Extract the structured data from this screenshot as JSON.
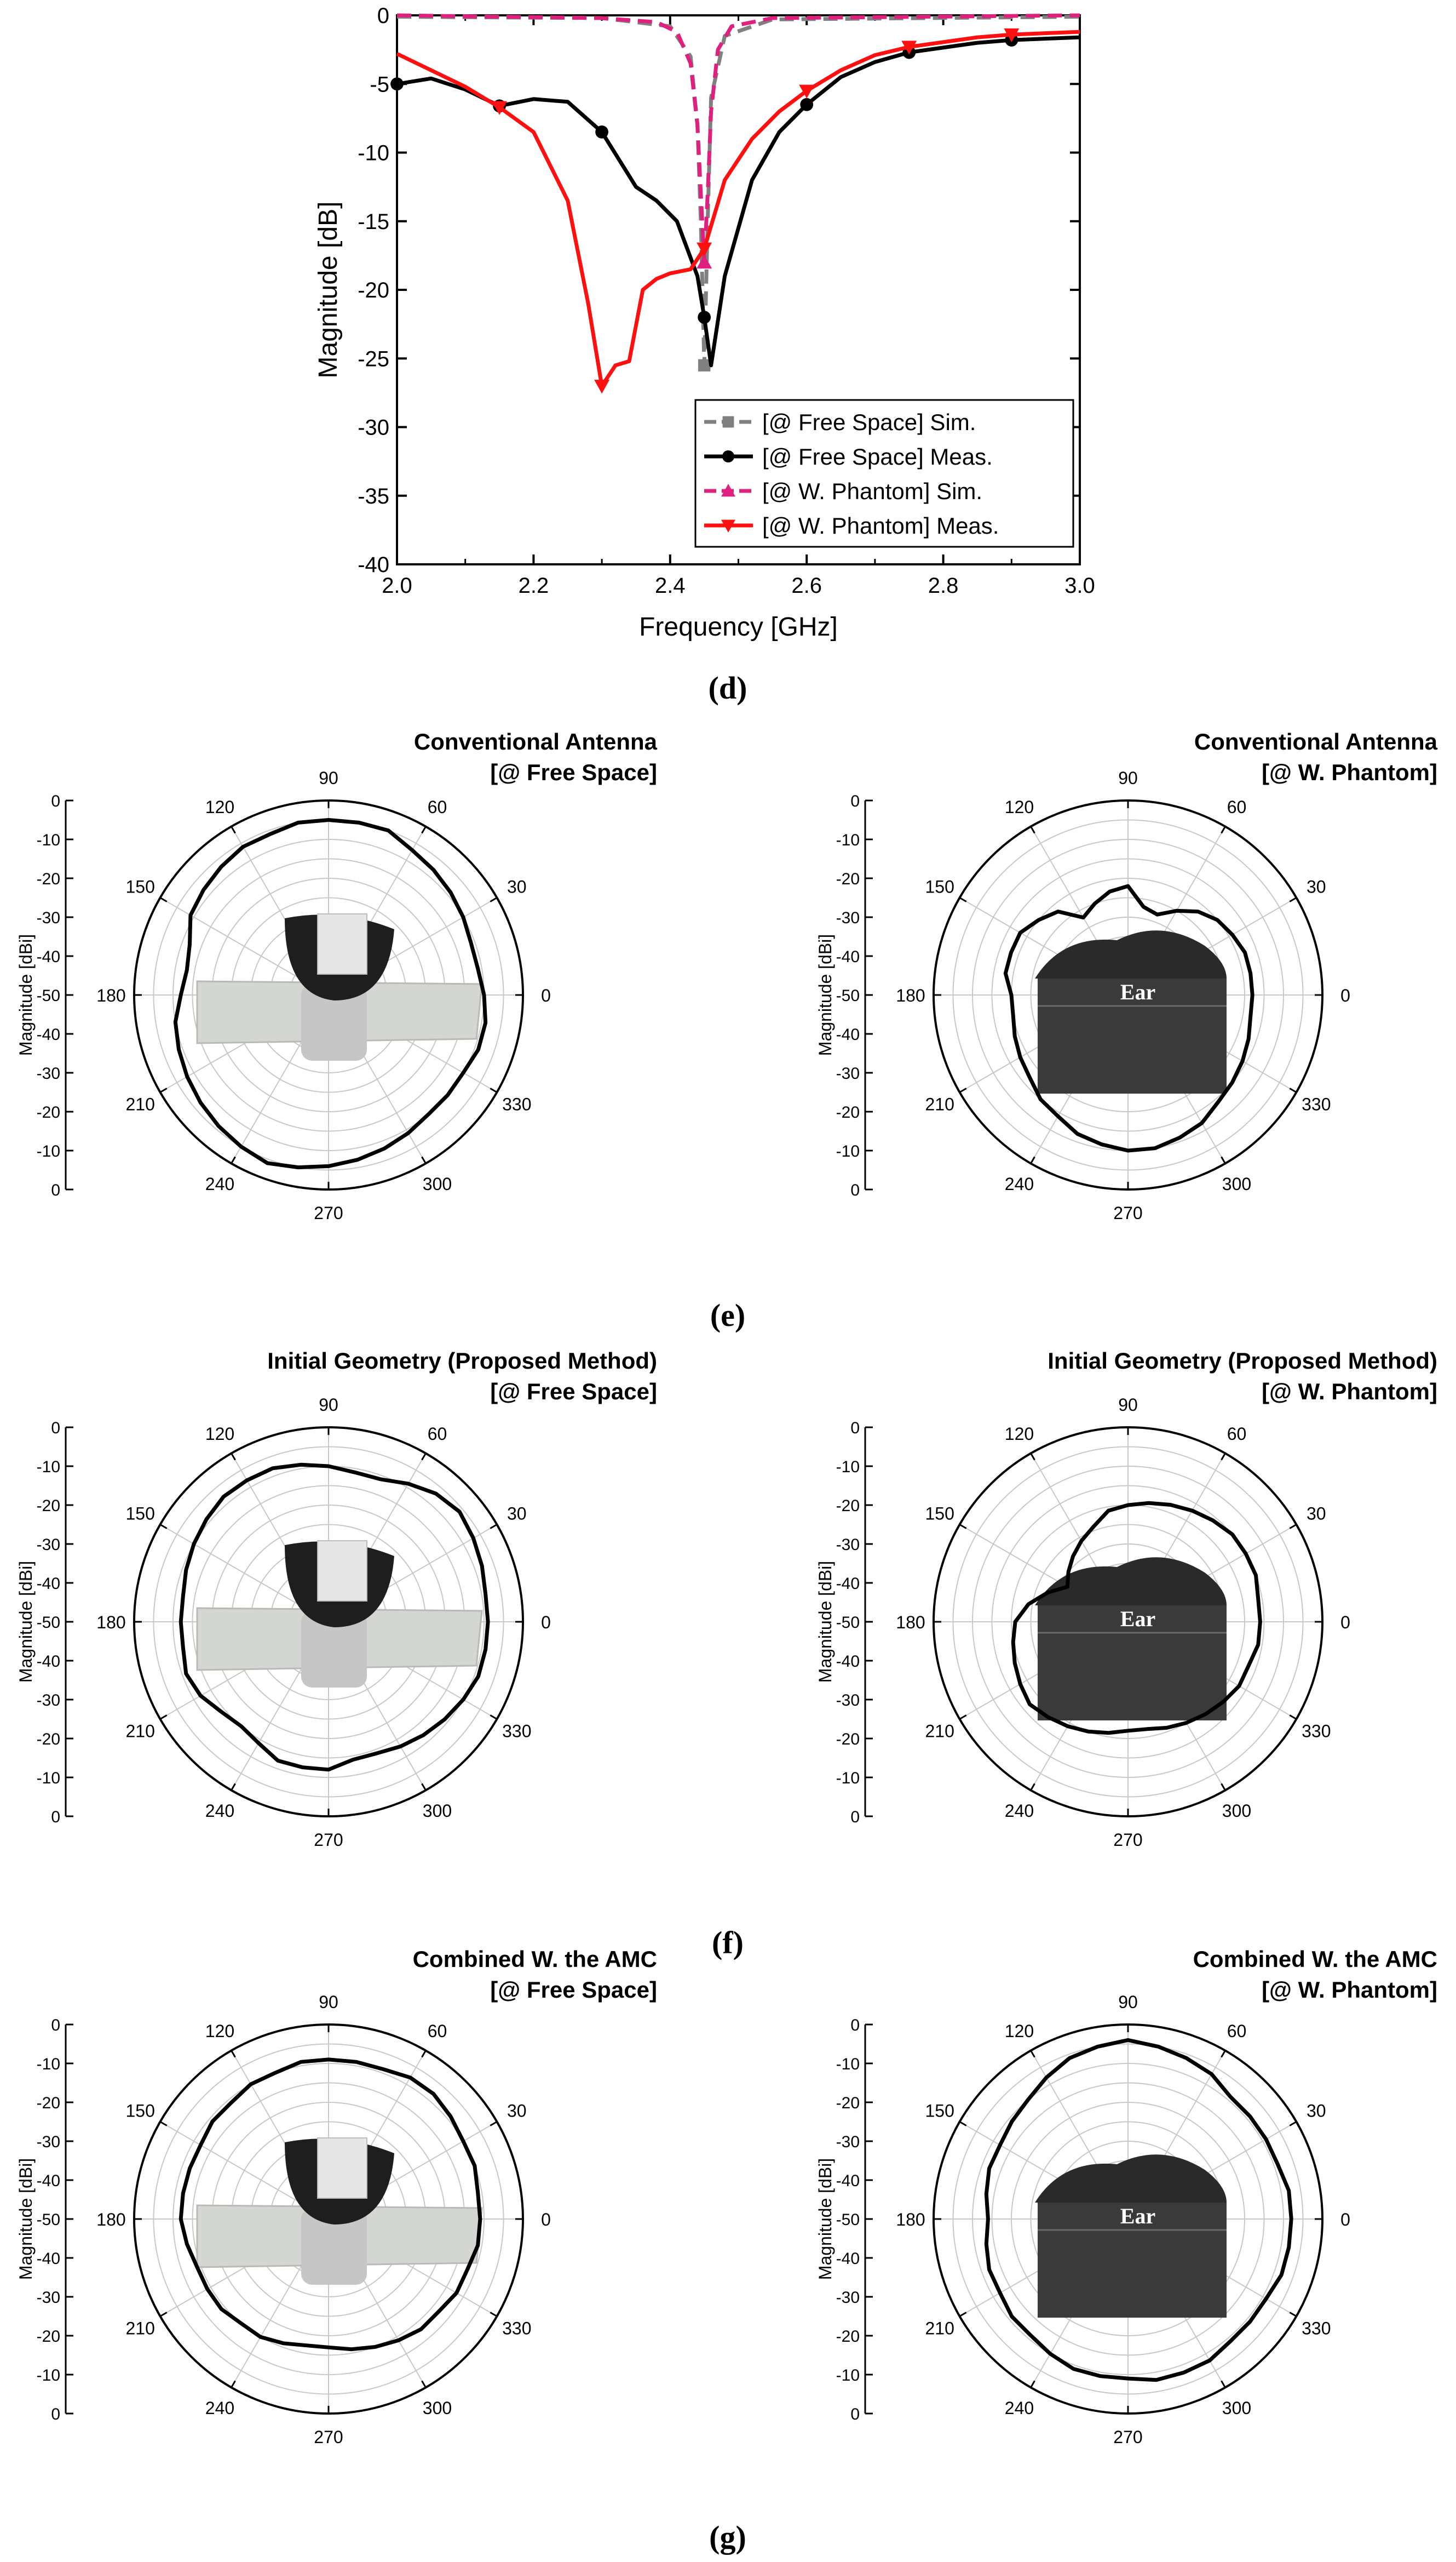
{
  "captions": [
    "(d)",
    "(e)",
    "(f)",
    "(g)"
  ],
  "colors": {
    "axis": "#000000",
    "grid": "#c8c8c8",
    "free_sim": "#808080",
    "free_meas": "#000000",
    "phantom_sim": "#e0207e",
    "phantom_meas": "#ff1010"
  },
  "chart_data": [
    {
      "id": "d",
      "type": "line",
      "xlabel": "Frequency [GHz]",
      "ylabel": "Magnitude [dB]",
      "xlim": [
        2.0,
        3.0
      ],
      "ylim": [
        -40,
        0
      ],
      "xticks": [
        2.0,
        2.2,
        2.4,
        2.6,
        2.8,
        3.0
      ],
      "yticks": [
        0,
        -5,
        -10,
        -15,
        -20,
        -25,
        -30,
        -35,
        -40
      ],
      "legend_position": "bottom-right",
      "series": [
        {
          "name": "[@ Free Space] Sim.",
          "color": "#808080",
          "dash": "dashed",
          "marker": "square",
          "markers_at": [
            2.45
          ],
          "points": [
            [
              2.0,
              -0.1
            ],
            [
              2.3,
              -0.2
            ],
            [
              2.4,
              -0.8
            ],
            [
              2.43,
              -3.0
            ],
            [
              2.44,
              -8.0
            ],
            [
              2.445,
              -15.0
            ],
            [
              2.45,
              -25.5
            ],
            [
              2.455,
              -15.0
            ],
            [
              2.46,
              -6.0
            ],
            [
              2.48,
              -1.5
            ],
            [
              2.55,
              -0.3
            ],
            [
              3.0,
              -0.1
            ]
          ]
        },
        {
          "name": "[@ Free Space] Meas.",
          "color": "#000000",
          "dash": "solid",
          "marker": "circle",
          "markers_at": [
            2.0,
            2.15,
            2.3,
            2.45,
            2.6,
            2.75,
            2.9
          ],
          "points": [
            [
              2.0,
              -5.0
            ],
            [
              2.05,
              -4.6
            ],
            [
              2.1,
              -5.4
            ],
            [
              2.15,
              -6.6
            ],
            [
              2.2,
              -6.1
            ],
            [
              2.25,
              -6.3
            ],
            [
              2.3,
              -8.5
            ],
            [
              2.35,
              -12.5
            ],
            [
              2.38,
              -13.5
            ],
            [
              2.41,
              -15.0
            ],
            [
              2.44,
              -19.0
            ],
            [
              2.45,
              -22.0
            ],
            [
              2.46,
              -25.5
            ],
            [
              2.48,
              -19.0
            ],
            [
              2.52,
              -12.0
            ],
            [
              2.56,
              -8.5
            ],
            [
              2.6,
              -6.5
            ],
            [
              2.65,
              -4.5
            ],
            [
              2.7,
              -3.4
            ],
            [
              2.75,
              -2.7
            ],
            [
              2.85,
              -2.0
            ],
            [
              2.9,
              -1.8
            ],
            [
              3.0,
              -1.6
            ]
          ]
        },
        {
          "name": "[@ W. Phantom] Sim.",
          "color": "#e0207e",
          "dash": "dashed",
          "marker": "triangle-up",
          "markers_at": [
            2.45
          ],
          "points": [
            [
              2.0,
              0.0
            ],
            [
              2.3,
              -0.2
            ],
            [
              2.38,
              -0.5
            ],
            [
              2.41,
              -1.2
            ],
            [
              2.43,
              -3.5
            ],
            [
              2.44,
              -8.0
            ],
            [
              2.445,
              -13.0
            ],
            [
              2.45,
              -18.0
            ],
            [
              2.455,
              -13.0
            ],
            [
              2.46,
              -7.0
            ],
            [
              2.47,
              -2.5
            ],
            [
              2.49,
              -0.8
            ],
            [
              2.55,
              -0.2
            ],
            [
              3.0,
              0.0
            ]
          ]
        },
        {
          "name": "[@ W. Phantom] Meas.",
          "color": "#ff1010",
          "dash": "solid",
          "marker": "triangle-down",
          "markers_at": [
            2.15,
            2.3,
            2.45,
            2.6,
            2.75,
            2.9
          ],
          "points": [
            [
              2.0,
              -2.8
            ],
            [
              2.05,
              -4.0
            ],
            [
              2.1,
              -5.2
            ],
            [
              2.15,
              -6.7
            ],
            [
              2.2,
              -8.5
            ],
            [
              2.25,
              -13.5
            ],
            [
              2.28,
              -21.0
            ],
            [
              2.3,
              -27.0
            ],
            [
              2.32,
              -25.5
            ],
            [
              2.34,
              -25.2
            ],
            [
              2.36,
              -20.0
            ],
            [
              2.38,
              -19.2
            ],
            [
              2.4,
              -18.8
            ],
            [
              2.43,
              -18.5
            ],
            [
              2.45,
              -17.0
            ],
            [
              2.48,
              -12.0
            ],
            [
              2.52,
              -9.0
            ],
            [
              2.56,
              -7.0
            ],
            [
              2.6,
              -5.5
            ],
            [
              2.65,
              -4.0
            ],
            [
              2.7,
              -2.9
            ],
            [
              2.75,
              -2.3
            ],
            [
              2.85,
              -1.6
            ],
            [
              2.9,
              -1.4
            ],
            [
              3.0,
              -1.2
            ]
          ]
        }
      ]
    },
    {
      "id": "e-left",
      "type": "polar",
      "group": "(e)",
      "title_lines": [
        "Conventional Antenna",
        "[@ Free Space]"
      ],
      "ylabel": "Magnitude [dBi]",
      "rlim": [
        -50,
        0
      ],
      "radial_ticks": [
        0,
        -10,
        -20,
        -30,
        -40,
        -50
      ],
      "angle_ticks": [
        0,
        30,
        60,
        90,
        120,
        150,
        180,
        210,
        240,
        270,
        300,
        330
      ],
      "photo": "antenna-free-space-photo",
      "photo_label": "",
      "pattern": {
        "angles": [
          0,
          10,
          20,
          30,
          40,
          50,
          60,
          70,
          80,
          90,
          100,
          110,
          120,
          130,
          140,
          150,
          160,
          170,
          180,
          190,
          200,
          210,
          220,
          230,
          240,
          250,
          260,
          270,
          280,
          290,
          300,
          310,
          320,
          330,
          340,
          350
        ],
        "values": [
          -10,
          -11,
          -11,
          -10,
          -9,
          -8,
          -7,
          -5,
          -5,
          -5,
          -5,
          -6,
          -6,
          -7,
          -8,
          -9,
          -12,
          -13,
          -12,
          -10,
          -9,
          -8,
          -7,
          -6,
          -5,
          -4,
          -5,
          -6,
          -7,
          -8,
          -9,
          -10,
          -10,
          -10,
          -9,
          -9
        ]
      }
    },
    {
      "id": "e-right",
      "type": "polar",
      "group": "(e)",
      "title_lines": [
        "Conventional Antenna",
        "[@ W. Phantom]"
      ],
      "ylabel": "Magnitude [dBi]",
      "rlim": [
        -50,
        0
      ],
      "radial_ticks": [
        0,
        -10,
        -20,
        -30,
        -40,
        -50
      ],
      "angle_ticks": [
        0,
        30,
        60,
        90,
        120,
        150,
        180,
        210,
        240,
        270,
        300,
        330
      ],
      "photo": "ear-phantom-photo",
      "photo_label": "Ear",
      "pattern": {
        "angles": [
          0,
          10,
          20,
          30,
          40,
          50,
          60,
          70,
          80,
          90,
          100,
          110,
          120,
          130,
          140,
          150,
          160,
          170,
          180,
          190,
          200,
          210,
          220,
          230,
          240,
          250,
          260,
          270,
          280,
          290,
          300,
          310,
          320,
          330,
          340,
          350
        ],
        "values": [
          -18,
          -18,
          -18,
          -19,
          -20,
          -22,
          -25,
          -28,
          -27,
          -22,
          -23,
          -25,
          -27,
          -22,
          -20,
          -18,
          -18,
          -18,
          -20,
          -20,
          -19,
          -18,
          -17,
          -15,
          -14,
          -12,
          -11,
          -10,
          -10,
          -11,
          -12,
          -14,
          -15,
          -16,
          -17,
          -18
        ]
      }
    },
    {
      "id": "f-left",
      "type": "polar",
      "group": "(f)",
      "title_lines": [
        "Initial Geometry (Proposed Method)",
        "[@ Free Space]"
      ],
      "ylabel": "Magnitude [dBi]",
      "rlim": [
        -50,
        0
      ],
      "radial_ticks": [
        0,
        -10,
        -20,
        -30,
        -40,
        -50
      ],
      "angle_ticks": [
        0,
        30,
        60,
        90,
        120,
        150,
        180,
        210,
        240,
        270,
        300,
        330
      ],
      "photo": "antenna-free-space-photo",
      "photo_label": "",
      "pattern": {
        "angles": [
          0,
          10,
          20,
          30,
          40,
          50,
          60,
          70,
          80,
          90,
          100,
          110,
          120,
          130,
          140,
          150,
          160,
          170,
          180,
          190,
          200,
          210,
          220,
          230,
          240,
          250,
          260,
          270,
          280,
          290,
          300,
          310,
          320,
          330,
          340,
          350
        ],
        "values": [
          -9,
          -9,
          -8,
          -7,
          -6,
          -7,
          -9,
          -11,
          -11,
          -10,
          -9,
          -8,
          -8,
          -8,
          -9,
          -10,
          -11,
          -12,
          -12,
          -12,
          -11,
          -12,
          -14,
          -15,
          -14,
          -12,
          -12,
          -12,
          -14,
          -14,
          -13,
          -12,
          -11,
          -10,
          -9,
          -9
        ]
      }
    },
    {
      "id": "f-right",
      "type": "polar",
      "group": "(f)",
      "title_lines": [
        "Initial Geometry (Proposed Method)",
        "[@ W. Phantom]"
      ],
      "ylabel": "Magnitude [dBi]",
      "rlim": [
        -50,
        0
      ],
      "radial_ticks": [
        0,
        -10,
        -20,
        -30,
        -40,
        -50
      ],
      "angle_ticks": [
        0,
        30,
        60,
        90,
        120,
        150,
        180,
        210,
        240,
        270,
        300,
        330
      ],
      "photo": "ear-phantom-photo",
      "photo_label": "Ear",
      "pattern": {
        "angles": [
          0,
          10,
          20,
          30,
          40,
          50,
          60,
          70,
          80,
          90,
          100,
          110,
          120,
          130,
          140,
          150,
          160,
          170,
          180,
          190,
          200,
          210,
          220,
          230,
          240,
          250,
          260,
          270,
          280,
          290,
          300,
          310,
          320,
          330,
          340,
          350
        ],
        "values": [
          -16,
          -16,
          -15,
          -15,
          -15,
          -16,
          -17,
          -18,
          -19,
          -20,
          -21,
          -24,
          -26,
          -28,
          -30,
          -32,
          -28,
          -24,
          -21,
          -20,
          -19,
          -18,
          -17,
          -18,
          -19,
          -20,
          -21,
          -22,
          -22,
          -21,
          -20,
          -19,
          -18,
          -17,
          -17,
          -16
        ]
      }
    },
    {
      "id": "g-left",
      "type": "polar",
      "group": "(g)",
      "title_lines": [
        "Combined W. the AMC",
        "[@ Free Space]"
      ],
      "ylabel": "Magnitude [dBi]",
      "rlim": [
        -50,
        0
      ],
      "radial_ticks": [
        0,
        -10,
        -20,
        -30,
        -40,
        -50
      ],
      "angle_ticks": [
        0,
        30,
        60,
        90,
        120,
        150,
        180,
        210,
        240,
        270,
        300,
        330
      ],
      "photo": "antenna-free-space-photo",
      "photo_label": "",
      "pattern": {
        "angles": [
          0,
          10,
          20,
          30,
          40,
          50,
          60,
          70,
          80,
          90,
          100,
          110,
          120,
          130,
          140,
          150,
          160,
          170,
          180,
          190,
          200,
          210,
          220,
          230,
          240,
          250,
          260,
          270,
          280,
          290,
          300,
          310,
          320,
          330,
          340,
          350
        ],
        "values": [
          -11,
          -11,
          -10,
          -10,
          -9,
          -8,
          -8,
          -9,
          -9,
          -9,
          -9,
          -10,
          -10,
          -11,
          -11,
          -12,
          -12,
          -12,
          -12,
          -13,
          -14,
          -14,
          -14,
          -15,
          -15,
          -16,
          -17,
          -17,
          -16,
          -15,
          -14,
          -13,
          -13,
          -12,
          -12,
          -11
        ]
      }
    },
    {
      "id": "g-right",
      "type": "polar",
      "group": "(g)",
      "title_lines": [
        "Combined W. the AMC",
        "[@ W. Phantom]"
      ],
      "ylabel": "Magnitude [dBi]",
      "rlim": [
        -50,
        0
      ],
      "radial_ticks": [
        0,
        -10,
        -20,
        -30,
        -40,
        -50
      ],
      "angle_ticks": [
        0,
        30,
        60,
        90,
        120,
        150,
        180,
        210,
        240,
        270,
        300,
        330
      ],
      "photo": "ear-phantom-photo",
      "photo_label": "Ear",
      "pattern": {
        "angles": [
          0,
          10,
          20,
          30,
          40,
          50,
          60,
          70,
          80,
          90,
          100,
          110,
          120,
          130,
          140,
          150,
          160,
          170,
          180,
          190,
          200,
          210,
          220,
          230,
          240,
          250,
          260,
          270,
          280,
          290,
          300,
          310,
          320,
          330,
          340,
          350
        ],
        "values": [
          -8,
          -8,
          -9,
          -9,
          -9,
          -9,
          -7,
          -6,
          -5,
          -4,
          -5,
          -6,
          -8,
          -10,
          -11,
          -12,
          -12,
          -13,
          -14,
          -13,
          -12,
          -12,
          -11,
          -11,
          -10,
          -9,
          -9,
          -9,
          -8,
          -8,
          -8,
          -9,
          -9,
          -9,
          -8,
          -8
        ]
      }
    }
  ]
}
